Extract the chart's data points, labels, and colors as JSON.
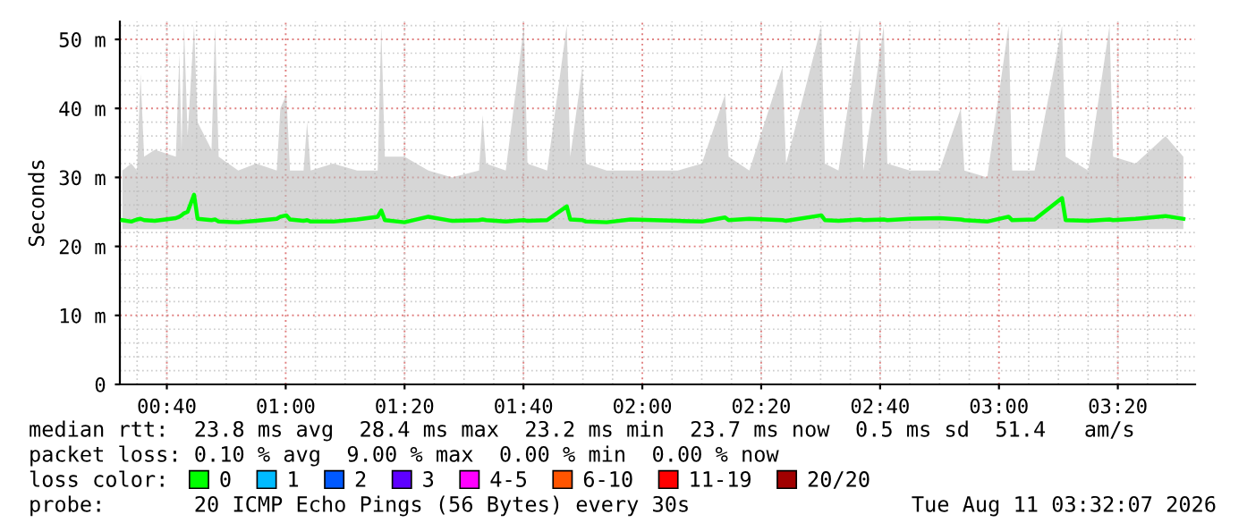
{
  "chart_data": {
    "type": "line",
    "ylabel": "Seconds",
    "xlim": [
      0.535,
      3.55
    ],
    "xticks": [
      {
        "value": 0.6667,
        "label": "00:40"
      },
      {
        "value": 1.0,
        "label": "01:00"
      },
      {
        "value": 1.3333,
        "label": "01:20"
      },
      {
        "value": 1.6667,
        "label": "01:40"
      },
      {
        "value": 2.0,
        "label": "02:00"
      },
      {
        "value": 2.3333,
        "label": "02:20"
      },
      {
        "value": 2.6667,
        "label": "02:40"
      },
      {
        "value": 3.0,
        "label": "03:00"
      },
      {
        "value": 3.3333,
        "label": "03:20"
      }
    ],
    "ylim": [
      0,
      52.6
    ],
    "yticks": [
      0,
      {
        "value": 10,
        "label": "10 m"
      },
      {
        "value": 20,
        "label": "20 m"
      },
      {
        "value": 30,
        "label": "30 m"
      },
      {
        "value": 40,
        "label": "40 m"
      },
      {
        "value": 50,
        "label": "50 m"
      }
    ],
    "grid": true,
    "legend": "bottom",
    "legend_title": "loss color:",
    "series": [
      {
        "name": "0",
        "color": "#00ff00",
        "x": [
          0.542,
          0.567,
          0.583,
          0.593,
          0.603,
          0.633,
          0.692,
          0.702,
          0.708,
          0.715,
          0.725,
          0.743,
          0.753,
          0.792,
          0.802,
          0.812,
          0.867,
          0.917,
          0.975,
          0.985,
          1.002,
          1.012,
          1.05,
          1.06,
          1.07,
          1.133,
          1.2,
          1.258,
          1.268,
          1.278,
          1.333,
          1.4,
          1.467,
          1.542,
          1.552,
          1.562,
          1.617,
          1.668,
          1.678,
          1.733,
          1.788,
          1.798,
          1.832,
          1.842,
          1.9,
          1.967,
          2.033,
          2.1,
          2.167,
          2.232,
          2.242,
          2.3,
          2.393,
          2.403,
          2.502,
          2.512,
          2.55,
          2.61,
          2.62,
          2.677,
          2.687,
          2.75,
          2.833,
          2.893,
          2.903,
          2.967,
          3.027,
          3.037,
          3.1,
          3.177,
          3.187,
          3.25,
          3.31,
          3.32,
          3.383,
          3.467,
          3.517
        ],
        "values": [
          23.8,
          23.6,
          23.9,
          24.0,
          23.8,
          23.7,
          24.1,
          24.3,
          24.5,
          24.8,
          25.0,
          27.5,
          24.0,
          23.8,
          23.9,
          23.6,
          23.5,
          23.7,
          24.0,
          24.3,
          24.5,
          23.9,
          23.7,
          23.8,
          23.6,
          23.6,
          23.9,
          24.3,
          25.2,
          23.8,
          23.5,
          24.3,
          23.7,
          23.8,
          23.9,
          23.8,
          23.6,
          23.8,
          23.7,
          23.8,
          25.8,
          23.9,
          23.8,
          23.6,
          23.5,
          23.9,
          23.8,
          23.7,
          23.6,
          24.2,
          23.8,
          24.0,
          23.8,
          23.7,
          24.5,
          23.8,
          23.7,
          23.9,
          23.8,
          23.9,
          23.8,
          24.0,
          24.1,
          23.9,
          23.8,
          23.6,
          24.3,
          23.8,
          23.9,
          27.0,
          23.8,
          23.7,
          23.9,
          23.8,
          24.0,
          24.4,
          24.0
        ],
        "lower": [
          22.5,
          22.5,
          22.5,
          22.5,
          22.5,
          22.5,
          22.5,
          22.5,
          22.5,
          22.5,
          22.5,
          22.5,
          22.5,
          22.5,
          22.5,
          22.5,
          22.5,
          22.5,
          22.5,
          22.5,
          22.5,
          22.5,
          22.5,
          22.5,
          22.5,
          22.5,
          22.5,
          22.5,
          22.5,
          22.5,
          22.5,
          22.5,
          22.5,
          22.5,
          22.5,
          22.5,
          22.5,
          22.5,
          22.5,
          22.5,
          22.5,
          22.5,
          22.5,
          22.5,
          22.5,
          22.5,
          22.5,
          22.5,
          22.5,
          22.5,
          22.5,
          22.5,
          22.5,
          22.5,
          22.5,
          22.5,
          22.5,
          22.5,
          22.5,
          22.5,
          22.5,
          22.5,
          22.5,
          22.5,
          22.5,
          22.5,
          22.5,
          22.5,
          22.5,
          22.5,
          22.5,
          22.5,
          22.5,
          22.5,
          22.5,
          22.5,
          22.5
        ],
        "upper": [
          31,
          32,
          31,
          45,
          33,
          34,
          33,
          48,
          34,
          52,
          36,
          52,
          38,
          34,
          52,
          33,
          31,
          32,
          31,
          40,
          42,
          31,
          31,
          38,
          31,
          32,
          31,
          31,
          52,
          33,
          33,
          31,
          30,
          31,
          39,
          32,
          31,
          52,
          32,
          31,
          52,
          33,
          46,
          32,
          31,
          31,
          31,
          31,
          32,
          42,
          33,
          31,
          46,
          32,
          52,
          32,
          31,
          52,
          31,
          52,
          32,
          31,
          31,
          40,
          31,
          30,
          52,
          31,
          31,
          52,
          33,
          31,
          52,
          33,
          32,
          36,
          33
        ]
      },
      {
        "name": "1",
        "color": "#00bbff"
      },
      {
        "name": "2",
        "color": "#0059ff"
      },
      {
        "name": "3",
        "color": "#5e00ff"
      },
      {
        "name": "4-5",
        "color": "#ff00ff"
      },
      {
        "name": "6-10",
        "color": "#ff5500"
      },
      {
        "name": "11-19",
        "color": "#ff0000"
      },
      {
        "name": "20/20",
        "color": "#a10000"
      }
    ],
    "annotations": [
      "median rtt:  23.8 ms avg  28.4 ms max  23.2 ms min  23.7 ms now  0.5 ms sd  51.4   am/s",
      "packet loss: 0.10 % avg  9.00 % max  0.00 % min  0.00 % now",
      "probe:       20 ICMP Echo Pings (56 Bytes) every 30s",
      "Tue Aug 11 03:32:07 2026"
    ]
  }
}
